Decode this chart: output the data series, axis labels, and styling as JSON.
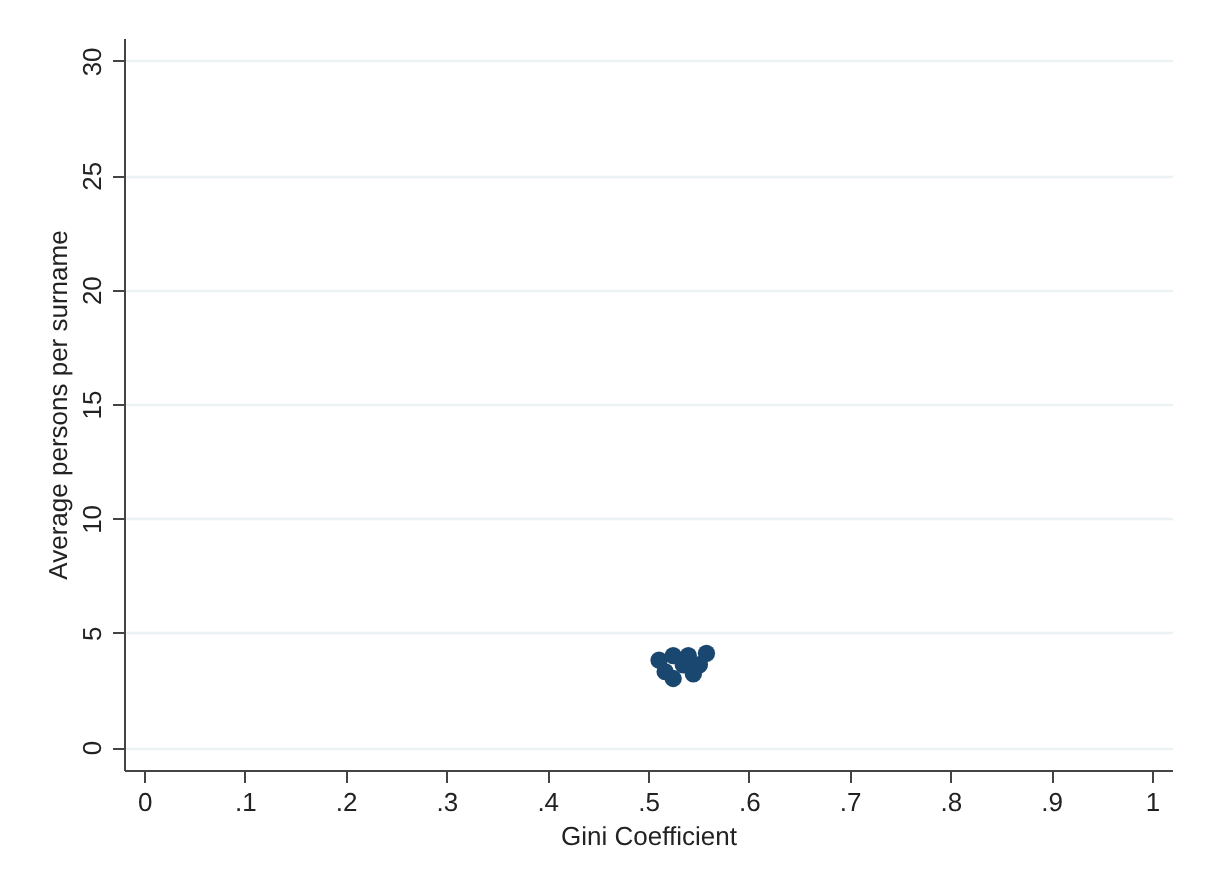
{
  "chart_data": {
    "type": "scatter",
    "xlabel": "Gini Coefficient",
    "ylabel": "Average persons per surname",
    "x": [
      0.511,
      0.517,
      0.525,
      0.525,
      0.535,
      0.54,
      0.545,
      0.551,
      0.558
    ],
    "values": [
      3.8,
      3.3,
      3.0,
      4.0,
      3.6,
      4.0,
      3.2,
      3.6,
      4.1
    ],
    "color": "#1a476f",
    "marker": "circle",
    "xlim": [
      -0.02,
      1.02
    ],
    "ylim": [
      -1,
      31
    ],
    "xticks": [
      0,
      {
        "value": 0.1,
        "label": ".1"
      },
      {
        "value": 0.2,
        "label": ".2"
      },
      {
        "value": 0.3,
        "label": ".3"
      },
      {
        "value": 0.4,
        "label": ".4"
      },
      {
        "value": 0.5,
        "label": ".5"
      },
      {
        "value": 0.6,
        "label": ".6"
      },
      {
        "value": 0.7,
        "label": ".7"
      },
      {
        "value": 0.8,
        "label": ".8"
      },
      {
        "value": 0.9,
        "label": ".9"
      },
      1
    ],
    "yticks": [
      0,
      5,
      10,
      15,
      20,
      25,
      30
    ],
    "grid": "y"
  }
}
